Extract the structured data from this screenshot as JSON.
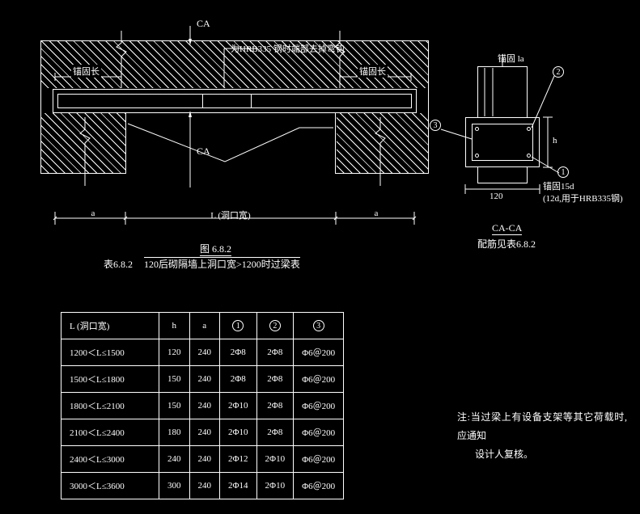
{
  "labels": {
    "ca_top": "CA",
    "ca_bottom": "CA",
    "hrb_note": "为HRB335 钢时端部去掉弯钩",
    "anchor_left": "锚固长",
    "anchor_right": "锚固长",
    "dim_a": "a",
    "dim_L": "L (洞口宽)",
    "fig_num": "图 6.8.2",
    "table_num": "表6.8.2",
    "table_title": "120后砌隔墙上洞口宽>1200时过梁表",
    "sec_anchor": "锚固 la",
    "sec_h": "h",
    "sec_120": "120",
    "sec_15d": "锚固15d",
    "sec_12d": "(12d,用于HRB335钢)",
    "sec_title": "CA-CA",
    "sec_sub": "配筋见表6.8.2"
  },
  "table": {
    "headers": {
      "L": "L (洞口宽)",
      "h": "h",
      "a": "a",
      "c1": "1",
      "c2": "2",
      "c3": "3"
    },
    "rows": [
      {
        "L": "1200＜L≤1500",
        "h": "120",
        "a": "240",
        "c1": "2Φ8",
        "c2": "2Φ8",
        "c3": "Φ6＠200"
      },
      {
        "L": "1500＜L≤1800",
        "h": "150",
        "a": "240",
        "c1": "2Φ8",
        "c2": "2Φ8",
        "c3": "Φ6＠200"
      },
      {
        "L": "1800＜L≤2100",
        "h": "150",
        "a": "240",
        "c1": "2Φ10",
        "c2": "2Φ8",
        "c3": "Φ6＠200"
      },
      {
        "L": "2100＜L≤2400",
        "h": "180",
        "a": "240",
        "c1": "2Φ10",
        "c2": "2Φ8",
        "c3": "Φ6＠200"
      },
      {
        "L": "2400＜L≤3000",
        "h": "240",
        "a": "240",
        "c1": "2Φ12",
        "c2": "2Φ10",
        "c3": "Φ6＠200"
      },
      {
        "L": "3000＜L≤3600",
        "h": "300",
        "a": "240",
        "c1": "2Φ14",
        "c2": "2Φ10",
        "c3": "Φ6＠200"
      }
    ]
  },
  "note": {
    "prefix": "注:",
    "line1": "当过梁上有设备支架等其它荷载时, 应通知",
    "line2": "设计人复核。"
  }
}
